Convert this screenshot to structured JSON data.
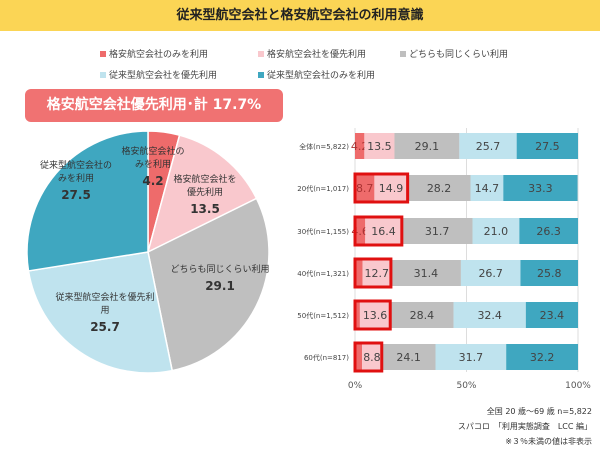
{
  "title": "従来型航空会社と格安航空会社の利用意識",
  "banner": "格安航空会社優先利用･計 17.7%",
  "legend": [
    {
      "label": "格安航空会社のみを利用",
      "color": "#ee6b6b"
    },
    {
      "label": "格安航空会社を優先利用",
      "color": "#f9c8cd"
    },
    {
      "label": "どちらも同じくらい利用",
      "color": "#bfbfbf"
    },
    {
      "label": "従来型航空会社を優先利用",
      "color": "#bfe3ee"
    },
    {
      "label": "従来型航空会社のみを利用",
      "color": "#3fa7c0"
    }
  ],
  "chart_data": [
    {
      "type": "pie",
      "slices": [
        {
          "label": "格安航空会社のみを利用",
          "value": 4.2,
          "value_label": "4.2"
        },
        {
          "label": "格安航空会社を優先利用",
          "value": 13.5,
          "value_label": "13.5"
        },
        {
          "label": "どちらも同じくらい利用",
          "value": 29.1,
          "value_label": "29.1"
        },
        {
          "label": "従来型航空会社を優先利用",
          "value": 25.7,
          "value_label": "25.7"
        },
        {
          "label": "従来型航空会社のみを利用",
          "value": 27.5,
          "value_label": "27.5"
        }
      ]
    },
    {
      "type": "bar",
      "orientation": "horizontal",
      "stacked": "percent",
      "categories": [
        "全体(n=5,822)",
        "20代(n=1,017)",
        "30代(n=1,155)",
        "40代(n=1,321)",
        "50代(n=1,512)",
        "60代(n=817)"
      ],
      "series": [
        {
          "name": "格安航空会社のみを利用",
          "values": [
            4.2,
            8.7,
            4.6,
            null,
            null,
            null
          ]
        },
        {
          "name": "格安航空会社を優先利用",
          "values": [
            13.5,
            14.9,
            16.4,
            12.7,
            13.6,
            8.8
          ]
        },
        {
          "name": "どちらも同じくらい利用",
          "values": [
            29.1,
            28.2,
            31.7,
            31.4,
            28.4,
            24.1
          ]
        },
        {
          "name": "従来型航空会社を優先利用",
          "values": [
            25.7,
            14.7,
            21.0,
            26.7,
            32.4,
            31.7
          ]
        },
        {
          "name": "従来型航空会社のみを利用",
          "values": [
            27.5,
            33.3,
            26.3,
            25.8,
            23.4,
            32.2
          ]
        }
      ],
      "highlighted_rows": [
        1,
        2,
        3,
        4,
        5
      ],
      "xticks": [
        "0%",
        "50%",
        "100%"
      ],
      "xlim": [
        0,
        100
      ]
    }
  ],
  "notes": [
    "全国 20 歳～69 歳 n=5,822",
    "スパコロ　「利用実態調査　LCC 編」",
    "※３％未満の値は非表示"
  ]
}
